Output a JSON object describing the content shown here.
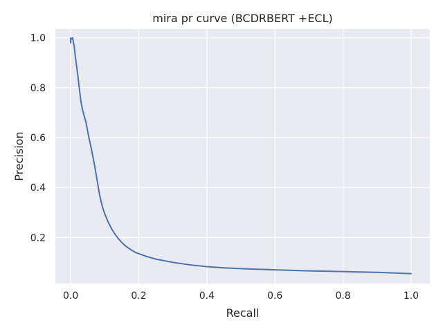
{
  "chart_data": {
    "type": "line",
    "title": "mira pr curve (BCDRBERT +ECL)",
    "xlabel": "Recall",
    "ylabel": "Precision",
    "xlim": [
      -0.045,
      1.055
    ],
    "ylim": [
      0.015,
      1.035
    ],
    "xticks": [
      0.0,
      0.2,
      0.4,
      0.6,
      0.8,
      1.0
    ],
    "xtick_labels": [
      "0.0",
      "0.2",
      "0.4",
      "0.6",
      "0.8",
      "1.0"
    ],
    "yticks": [
      0.2,
      0.4,
      0.6,
      0.8,
      1.0
    ],
    "ytick_labels": [
      "0.2",
      "0.4",
      "0.6",
      "0.8",
      "1.0"
    ],
    "grid": true,
    "legend": "none",
    "colors": {
      "background": "#eaeaf2",
      "grid": "#ffffff",
      "line": "#4c72b0",
      "text": "#262626"
    },
    "series": [
      {
        "x": [
          0.0,
          0.0,
          0.003,
          0.006,
          0.008,
          0.01,
          0.012,
          0.015,
          0.02,
          0.025,
          0.03,
          0.035,
          0.04,
          0.045,
          0.05,
          0.055,
          0.06,
          0.065,
          0.07,
          0.075,
          0.08,
          0.085,
          0.09,
          0.095,
          0.1,
          0.11,
          0.12,
          0.13,
          0.14,
          0.15,
          0.16,
          0.17,
          0.18,
          0.19,
          0.2,
          0.22,
          0.25,
          0.3,
          0.35,
          0.4,
          0.45,
          0.5,
          0.6,
          0.7,
          0.8,
          0.9,
          1.0
        ],
        "y": [
          0.98,
          1.0,
          0.995,
          1.0,
          0.98,
          0.97,
          0.945,
          0.91,
          0.86,
          0.8,
          0.745,
          0.71,
          0.685,
          0.66,
          0.625,
          0.59,
          0.56,
          0.525,
          0.49,
          0.45,
          0.41,
          0.37,
          0.34,
          0.315,
          0.295,
          0.262,
          0.235,
          0.213,
          0.195,
          0.18,
          0.167,
          0.157,
          0.148,
          0.14,
          0.135,
          0.125,
          0.113,
          0.1,
          0.09,
          0.083,
          0.078,
          0.075,
          0.07,
          0.066,
          0.063,
          0.06,
          0.055
        ]
      }
    ]
  }
}
